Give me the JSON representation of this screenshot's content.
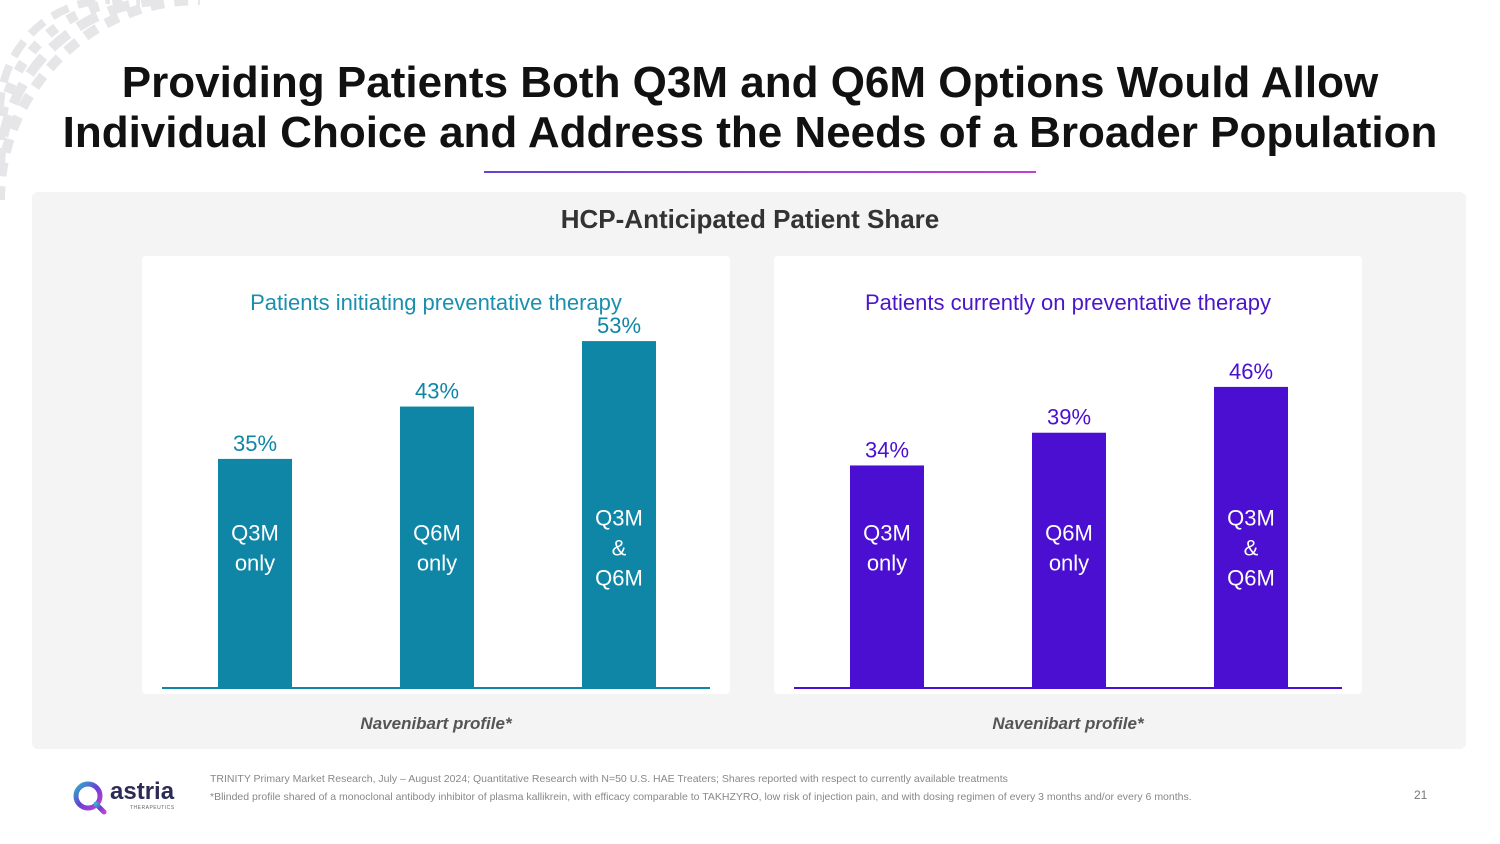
{
  "slide": {
    "title_line1": "Providing Patients Both Q3M and Q6M Options Would Allow",
    "title_line2": "Individual Choice and Address the Needs of a Broader Population",
    "panel_title": "HCP-Anticipated Patient Share",
    "footer_line1": "TRINITY Primary Market Research, July – August 2024; Quantitative Research with N=50 U.S. HAE Treaters; Shares reported with respect to currently available treatments",
    "footer_line2": "*Blinded profile shared of a monoclonal antibody inhibitor of plasma kallikrein, with efficacy comparable to TAKHZYRO, low risk of injection pain, and with dosing regimen of every 3 months and/or every 6 months.",
    "page_number": "21",
    "logo": {
      "word": "astria",
      "sub": "THERAPEUTICS",
      "icon": "astria-logo-icon"
    },
    "accent_line_colors": [
      "#6a3fd4",
      "#c13fd6"
    ]
  },
  "chart_data": [
    {
      "type": "bar",
      "title": "Patients initiating preventative therapy",
      "xlabel": "Navenibart profile*",
      "ylabel": "",
      "categories": [
        "Q3M only",
        "Q6M only",
        "Q3M & Q6M"
      ],
      "bar_labels": [
        [
          "Q3M",
          "only"
        ],
        [
          "Q6M",
          "only"
        ],
        [
          "Q3M",
          "&",
          "Q6M"
        ]
      ],
      "values": [
        35,
        43,
        53
      ],
      "value_labels": [
        "35%",
        "43%",
        "53%"
      ],
      "ylim": [
        0,
        55
      ],
      "color": "#0f86a6",
      "title_color": "#1a8fae",
      "grid": false
    },
    {
      "type": "bar",
      "title": "Patients currently on preventative therapy",
      "xlabel": "Navenibart profile*",
      "ylabel": "",
      "categories": [
        "Q3M only",
        "Q6M only",
        "Q3M & Q6M"
      ],
      "bar_labels": [
        [
          "Q3M",
          "only"
        ],
        [
          "Q6M",
          "only"
        ],
        [
          "Q3M",
          "&",
          "Q6M"
        ]
      ],
      "values": [
        34,
        39,
        46
      ],
      "value_labels": [
        "34%",
        "39%",
        "46%"
      ],
      "ylim": [
        0,
        55
      ],
      "color": "#4a0fd0",
      "title_color": "#4a16c8",
      "grid": false
    }
  ]
}
